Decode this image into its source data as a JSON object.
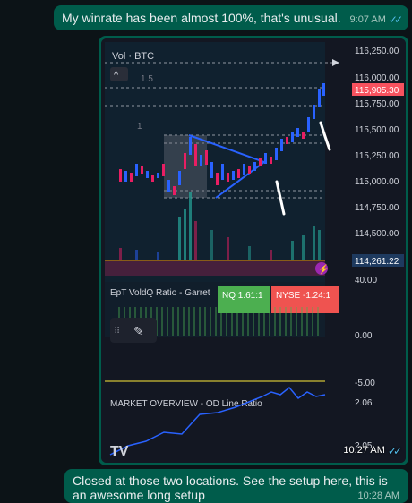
{
  "messages": {
    "top": {
      "text": "My winrate has been almost 100%, that's unusual.",
      "time": "9:07 AM"
    },
    "image": {
      "time": "10:27 AM"
    },
    "bottom": {
      "text": "Closed at those two locations. See the setup here, this is an awesome long setup",
      "time": "10:28 AM"
    }
  },
  "chart": {
    "symbol": "Vol · BTC",
    "label_1_5": "1.5",
    "label_1": "1",
    "price_axis": [
      "116,250.00",
      "116,000.00",
      "115,750.00",
      "115,500.00",
      "115,250.00",
      "115,000.00",
      "114,750.00",
      "114,500.00"
    ],
    "last_price": "115,905.30",
    "volume_label": "114,261.22",
    "ratio_indicator": {
      "title": "EpT VoldQ Ratio - Garret",
      "nq": "NQ 1.61:1",
      "nyse": "NYSE -1.24:1",
      "axis": [
        "40.00",
        "0.00",
        "-5.00"
      ]
    },
    "market_overview": {
      "title": "MARKET OVERVIEW - OD Line Ratio",
      "axis": [
        "2.06",
        "2.05"
      ]
    },
    "logo": "TV",
    "colors": {
      "up": "#2962ff",
      "down": "#e91e63",
      "nq_bg": "#4caf50",
      "nyse_bg": "#ef5350",
      "last_price_bg": "#f7525f",
      "volume_tag_bg": "#1e3a5f"
    }
  }
}
